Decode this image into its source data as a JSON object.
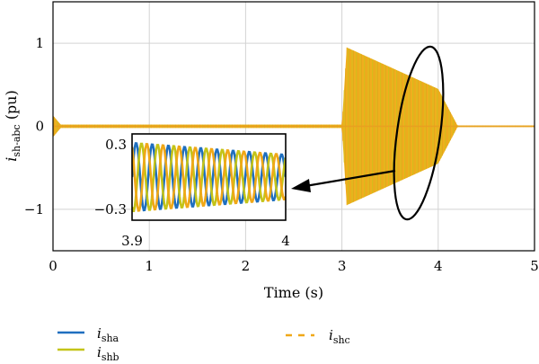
{
  "chart_data": [
    {
      "type": "line",
      "title": "",
      "xlabel": "Time (s)",
      "ylabel": {
        "base": "i",
        "sub": "sh-abc",
        "unit": " (pu)"
      },
      "xlim": [
        0,
        5
      ],
      "ylim": [
        -1.5,
        1.5
      ],
      "xticks": [
        0,
        1,
        2,
        3,
        4,
        5
      ],
      "xtick_labels": [
        "0",
        "1",
        "2",
        "3",
        "4",
        "5"
      ],
      "yticks": [
        1,
        0,
        -1
      ],
      "ytick_labels": [
        "1",
        "0",
        "−1"
      ],
      "grid": true,
      "series": [
        {
          "base": "i",
          "sub": "sha",
          "color": "#1f6fbf",
          "style": "solid"
        },
        {
          "base": "i",
          "sub": "shb",
          "color": "#c4c419",
          "style": "solid"
        },
        {
          "base": "i",
          "sub": "shc",
          "color": "#f0a818",
          "style": "dashed"
        }
      ],
      "envelope": {
        "description_points_t": [
          0,
          0.08,
          0.3,
          3.0,
          3.05,
          4.0,
          4.2,
          5
        ],
        "amplitude": [
          0.13,
          0.02,
          0.02,
          0.02,
          0.95,
          0.45,
          0.01,
          0.01
        ]
      },
      "legend_position": "bottom"
    },
    {
      "type": "line",
      "role": "inset-zoom",
      "xlim": [
        3.9,
        4.0
      ],
      "ylim": [
        -0.4,
        0.4
      ],
      "xtick_labels": [
        "3.9",
        "4"
      ],
      "ytick_labels": [
        "0.3",
        "−0.3"
      ],
      "amplitude": 0.32,
      "cycles": 5
    }
  ]
}
